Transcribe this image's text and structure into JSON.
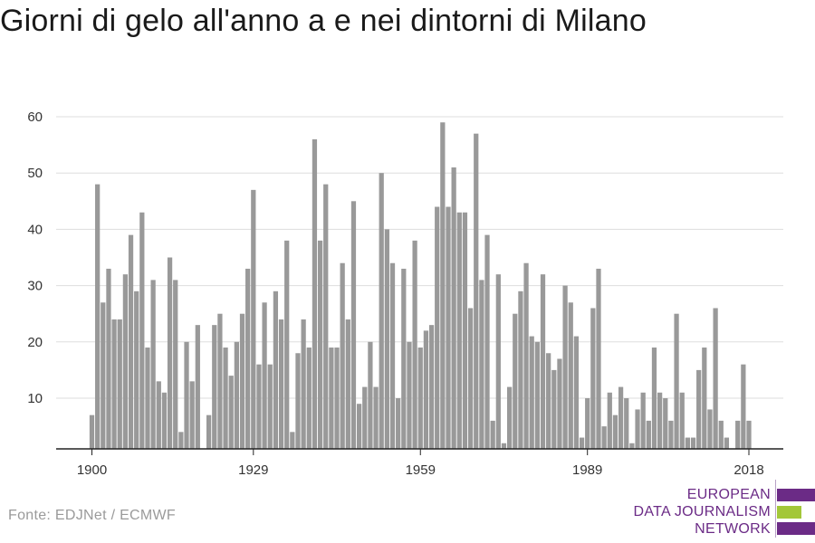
{
  "title": "Giorni di gelo all'anno a e nei dintorni di Milano",
  "source": "Fonte: EDJNet / ECMWF",
  "logo": {
    "lines": [
      "EUROPEAN",
      "DATA JOURNALISM",
      "NETWORK"
    ],
    "colors": {
      "purple": "#6b2b86",
      "green": "#a3c739"
    }
  },
  "colors": {
    "bar": "#999999",
    "grid": "#dddddd",
    "axis": "#222222"
  },
  "chart_data": {
    "type": "bar",
    "title": "Giorni di gelo all'anno a e nei dintorni di Milano",
    "xlabel": "",
    "ylabel": "",
    "ylim": [
      1,
      60
    ],
    "yticks": [
      10,
      20,
      30,
      40,
      50,
      60
    ],
    "xticks": [
      1900,
      1929,
      1959,
      1989,
      2018
    ],
    "grid": true,
    "x_start": 1900,
    "x_end": 2021,
    "values": [
      7,
      48,
      27,
      33,
      24,
      24,
      32,
      39,
      29,
      43,
      19,
      31,
      13,
      11,
      35,
      31,
      4,
      20,
      13,
      23,
      0,
      7,
      23,
      25,
      19,
      14,
      20,
      25,
      33,
      47,
      16,
      27,
      16,
      29,
      24,
      38,
      4,
      18,
      24,
      19,
      56,
      38,
      48,
      19,
      19,
      34,
      24,
      45,
      9,
      12,
      20,
      12,
      50,
      40,
      34,
      10,
      33,
      20,
      38,
      19,
      22,
      23,
      44,
      59,
      44,
      51,
      43,
      43,
      26,
      57,
      31,
      39,
      6,
      32,
      2,
      12,
      25,
      29,
      34,
      21,
      20,
      32,
      18,
      15,
      17,
      30,
      27,
      21,
      3,
      10,
      26,
      33,
      5,
      11,
      7,
      12,
      10,
      2,
      8,
      11,
      6,
      19,
      11,
      10,
      6,
      25,
      11,
      3,
      3,
      15,
      19,
      8,
      26,
      6,
      3,
      0,
      6,
      16,
      6,
      0,
      0,
      0
    ]
  }
}
